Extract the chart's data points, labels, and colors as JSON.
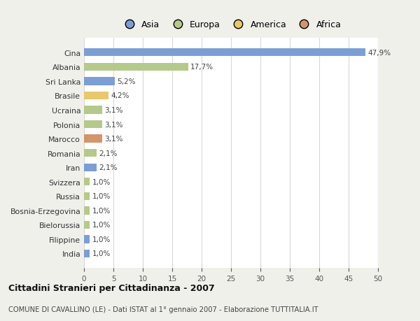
{
  "categories": [
    "India",
    "Filippine",
    "Bielorussia",
    "Bosnia-Erzegovina",
    "Russia",
    "Svizzera",
    "Iran",
    "Romania",
    "Marocco",
    "Polonia",
    "Ucraina",
    "Brasile",
    "Sri Lanka",
    "Albania",
    "Cina"
  ],
  "values": [
    1.0,
    1.0,
    1.0,
    1.0,
    1.0,
    1.0,
    2.1,
    2.1,
    3.1,
    3.1,
    3.1,
    4.2,
    5.2,
    17.7,
    47.9
  ],
  "colors": [
    "#7b9fd4",
    "#7b9fd4",
    "#b5c98a",
    "#b5c98a",
    "#b5c98a",
    "#b5c98a",
    "#7b9fd4",
    "#b5c98a",
    "#d4956a",
    "#b5c98a",
    "#b5c98a",
    "#e8c86a",
    "#7b9fd4",
    "#b5c98a",
    "#7b9fd4"
  ],
  "labels": [
    "1,0%",
    "1,0%",
    "1,0%",
    "1,0%",
    "1,0%",
    "1,0%",
    "2,1%",
    "2,1%",
    "3,1%",
    "3,1%",
    "3,1%",
    "4,2%",
    "5,2%",
    "17,7%",
    "47,9%"
  ],
  "xlim": [
    0,
    50
  ],
  "xticks": [
    0,
    5,
    10,
    15,
    20,
    25,
    30,
    35,
    40,
    45,
    50
  ],
  "title_main": "Cittadini Stranieri per Cittadinanza - 2007",
  "title_sub": "COMUNE DI CAVALLINO (LE) - Dati ISTAT al 1° gennaio 2007 - Elaborazione TUTTITALIA.IT",
  "legend_items": [
    {
      "label": "Asia",
      "color": "#7b9fd4"
    },
    {
      "label": "Europa",
      "color": "#b5c98a"
    },
    {
      "label": "America",
      "color": "#e8c86a"
    },
    {
      "label": "Africa",
      "color": "#d4956a"
    }
  ],
  "background_color": "#f0f0eb",
  "bar_background": "#ffffff",
  "grid_color": "#d8d8d8"
}
